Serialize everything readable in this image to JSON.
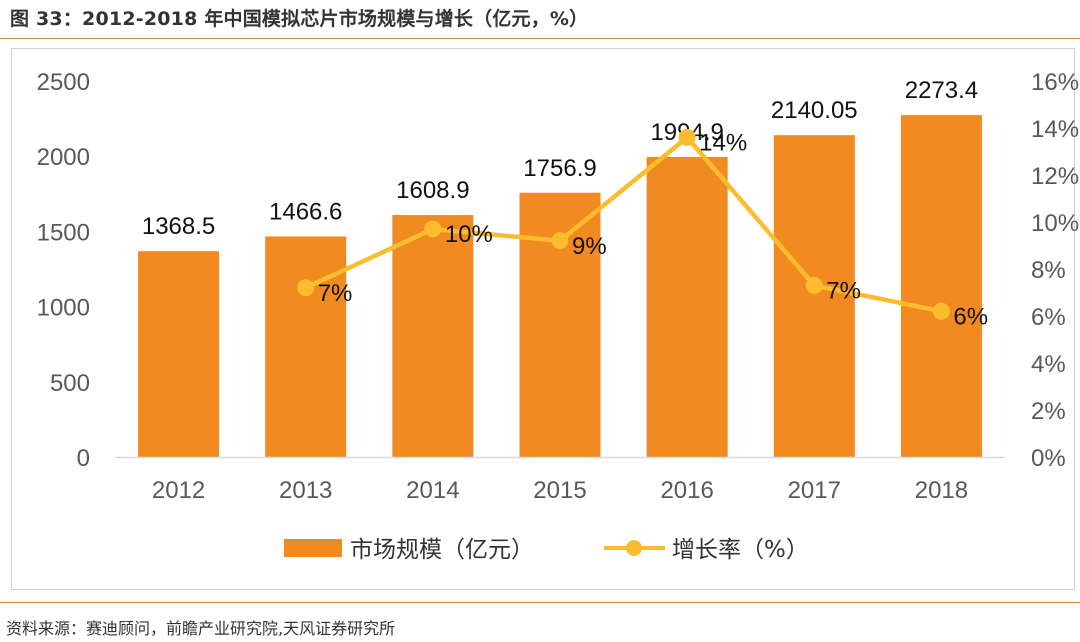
{
  "title": "图 33：2012-2018 年中国模拟芯片市场规模与增长（亿元，%）",
  "source": "资料来源：赛迪顾问，前瞻产业研究院,天风证券研究所",
  "colors": {
    "bar": "#f28a22",
    "line": "#fbbd2d",
    "accent_rule": "#c9893a"
  },
  "chart_data": {
    "type": "bar+line",
    "categories": [
      "2012",
      "2013",
      "2014",
      "2015",
      "2016",
      "2017",
      "2018"
    ],
    "series": [
      {
        "name": "市场规模（亿元）",
        "type": "bar",
        "axis": "left",
        "values": [
          1368.5,
          1466.6,
          1608.9,
          1756.9,
          1994.9,
          2140.05,
          2273.4
        ],
        "labels": [
          "1368.5",
          "1466.6",
          "1608.9",
          "1756.9",
          "1994.9",
          "2140.05",
          "2273.4"
        ]
      },
      {
        "name": "增长率（%）",
        "type": "line",
        "axis": "right",
        "values": [
          null,
          7.2,
          9.7,
          9.2,
          13.6,
          7.3,
          6.2
        ],
        "labels": [
          "",
          "7%",
          "10%",
          "9%",
          "14%",
          "7%",
          "6%"
        ]
      }
    ],
    "y_left": {
      "min": 0,
      "max": 2500,
      "ticks": [
        "0",
        "500",
        "1000",
        "1500",
        "2000",
        "2500"
      ]
    },
    "y_right": {
      "min": 0,
      "max": 16,
      "ticks": [
        "0%",
        "2%",
        "4%",
        "6%",
        "8%",
        "10%",
        "12%",
        "14%",
        "16%"
      ]
    },
    "legend_position": "bottom",
    "grid": false
  }
}
